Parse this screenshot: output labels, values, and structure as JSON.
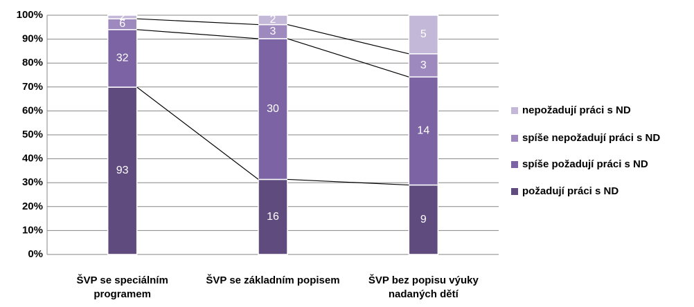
{
  "chart_data": {
    "type": "bar",
    "stacking": "percent",
    "categories": [
      "ŠVP se speciálním programem",
      "ŠVP se základním popisem",
      "ŠVP bez popisu výuky nadaných dětí"
    ],
    "series": [
      {
        "name": "požadují práci s ND",
        "color": "#604b7f",
        "values": [
          93,
          16,
          9
        ]
      },
      {
        "name": "spíše požadují práci s ND",
        "color": "#7c63a3",
        "values": [
          32,
          30,
          14
        ]
      },
      {
        "name": "spíše nepožadují práci s ND",
        "color": "#9d89be",
        "values": [
          6,
          3,
          3
        ]
      },
      {
        "name": "nepožadují práci s ND",
        "color": "#c4b8d8",
        "values": [
          2,
          2,
          5
        ]
      }
    ],
    "ylim": [
      0,
      100
    ],
    "yticks": [
      {
        "value": 0,
        "label": "0%"
      },
      {
        "value": 10,
        "label": "10%"
      },
      {
        "value": 20,
        "label": "20%"
      },
      {
        "value": 30,
        "label": "30%"
      },
      {
        "value": 40,
        "label": "40%"
      },
      {
        "value": 50,
        "label": "50%"
      },
      {
        "value": 60,
        "label": "60%"
      },
      {
        "value": 70,
        "label": "70%"
      },
      {
        "value": 80,
        "label": "80%"
      },
      {
        "value": 90,
        "label": "90%"
      },
      {
        "value": 100,
        "label": "100%"
      }
    ],
    "grid": true,
    "series_lines": true,
    "legend": "right"
  }
}
